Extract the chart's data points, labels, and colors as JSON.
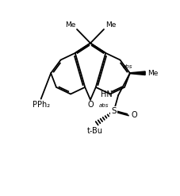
{
  "bg_color": "#ffffff",
  "line_color": "#000000",
  "lw": 1.3,
  "figsize": [
    2.28,
    2.47
  ],
  "dpi": 100,
  "xlim": [
    0,
    10
  ],
  "ylim": [
    0,
    10.8
  ]
}
